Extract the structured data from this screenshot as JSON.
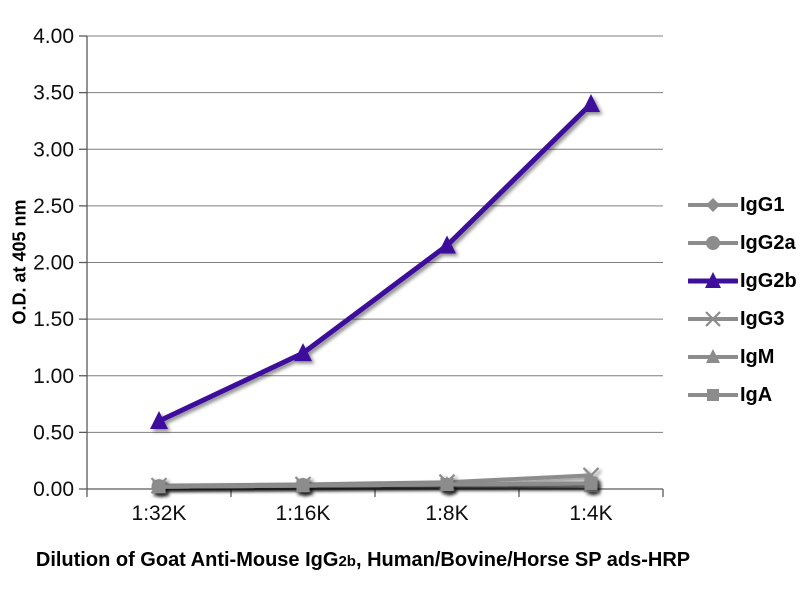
{
  "chart_data": {
    "type": "line",
    "categories": [
      "1:32K",
      "1:16K",
      "1:8K",
      "1:4K"
    ],
    "series": [
      {
        "name": "IgG1",
        "marker": "diamond",
        "color": "#8c8c8c",
        "values": [
          0.02,
          0.02,
          0.03,
          0.03
        ]
      },
      {
        "name": "IgG2a",
        "marker": "circle",
        "color": "#8c8c8c",
        "values": [
          0.02,
          0.03,
          0.03,
          0.04
        ]
      },
      {
        "name": "IgG2b",
        "marker": "triangle",
        "color": "#3d0f9b",
        "values": [
          0.6,
          1.2,
          2.15,
          3.4
        ]
      },
      {
        "name": "IgG3",
        "marker": "x",
        "color": "#8c8c8c",
        "values": [
          0.03,
          0.04,
          0.06,
          0.12
        ]
      },
      {
        "name": "IgM",
        "marker": "triangle",
        "color": "#8c8c8c",
        "values": [
          0.02,
          0.03,
          0.04,
          0.03
        ]
      },
      {
        "name": "IgA",
        "marker": "square",
        "color": "#8c8c8c",
        "values": [
          0.02,
          0.03,
          0.04,
          0.05
        ]
      }
    ],
    "ylabel": "O.D. at 405 nm",
    "y_ticks": [
      "0.00",
      "0.50",
      "1.00",
      "1.50",
      "2.00",
      "2.50",
      "3.00",
      "3.50",
      "4.00"
    ],
    "ylim": [
      0,
      4
    ],
    "xlabel": "Dilution of Goat Anti-Mouse IgG2b, Human/Bovine/Horse SP ads-HRP",
    "xlabel_parts": {
      "prefix": "Dilution of Goat Anti-Mouse IgG",
      "subscript": "2b",
      "suffix": ", Human/Bovine/Horse SP ads-HRP"
    },
    "grid": "horizontal",
    "legend_position": "right",
    "grid_color": "#7f7f7f",
    "axis_color": "#5a5a5a",
    "tick_text_color": "#0d0d0d",
    "highlight_color": "#3d0f9b",
    "muted_series_color": "#8c8c8c"
  }
}
